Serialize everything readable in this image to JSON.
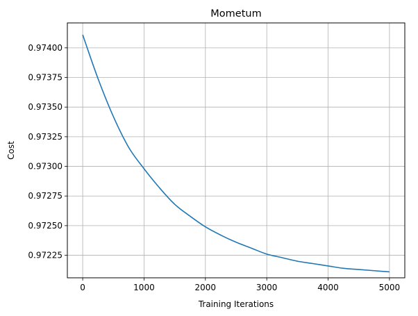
{
  "chart_data": {
    "type": "line",
    "title": "Mometum",
    "xlabel": "Training Iterations",
    "ylabel": "Cost",
    "xlim": [
      -250,
      5250
    ],
    "ylim": [
      0.97206,
      0.97421
    ],
    "xticks": [
      0,
      1000,
      2000,
      3000,
      4000,
      5000
    ],
    "xtick_labels": [
      "0",
      "1000",
      "2000",
      "3000",
      "4000",
      "5000"
    ],
    "yticks": [
      0.97225,
      0.9725,
      0.97275,
      0.973,
      0.97325,
      0.9735,
      0.97375,
      0.974
    ],
    "ytick_labels": [
      "0.97225",
      "0.97250",
      "0.97275",
      "0.97300",
      "0.97325",
      "0.97350",
      "0.97375",
      "0.97400"
    ],
    "grid": true,
    "series": [
      {
        "color": "#1f77b4",
        "x": [
          0,
          250,
          500,
          750,
          1000,
          1250,
          1500,
          1750,
          2000,
          2250,
          2500,
          2750,
          3000,
          3250,
          3500,
          3750,
          4000,
          4250,
          4500,
          4750,
          5000
        ],
        "y": [
          0.97411,
          0.97374,
          0.97342,
          0.97316,
          0.97298,
          0.97282,
          0.97268,
          0.97258,
          0.97249,
          0.97242,
          0.97236,
          0.97231,
          0.97226,
          0.97223,
          0.9722,
          0.97218,
          0.97216,
          0.97214,
          0.97213,
          0.97212,
          0.97211
        ]
      }
    ]
  }
}
